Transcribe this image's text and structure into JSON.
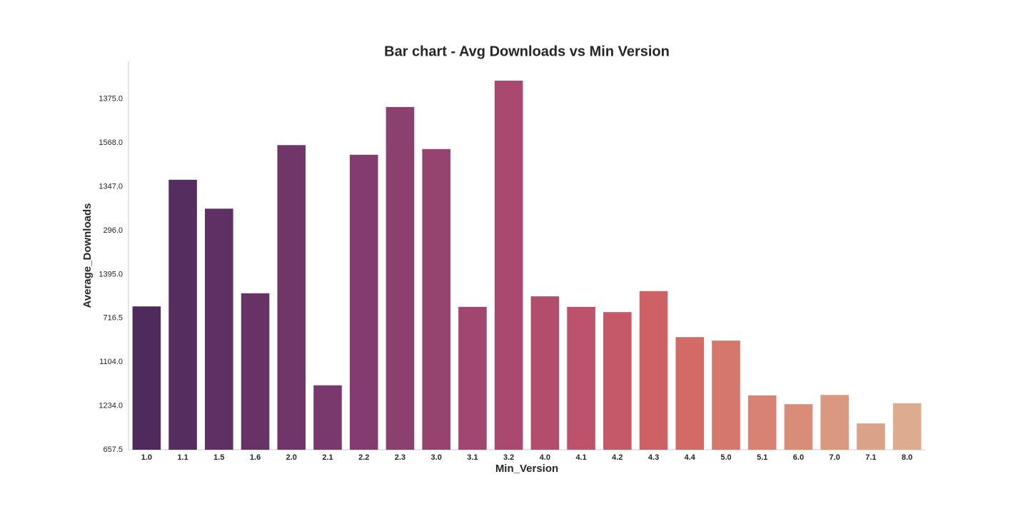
{
  "chart_data": {
    "type": "bar",
    "title": "Bar chart - Avg Downloads vs Min Version",
    "x_label": "Min_Version",
    "y_label": "Average_Downloads",
    "categories": [
      "1.0",
      "1.1",
      "1.5",
      "1.6",
      "2.0",
      "2.1",
      "2.2",
      "2.3",
      "3.0",
      "3.1",
      "3.2",
      "4.0",
      "4.1",
      "4.2",
      "4.3",
      "4.4",
      "5.0",
      "5.1",
      "6.0",
      "7.0",
      "7.1",
      "8.0"
    ],
    "values": [
      3.27,
      6.16,
      5.5,
      3.57,
      6.95,
      1.47,
      6.73,
      7.82,
      6.86,
      3.26,
      8.42,
      3.5,
      3.26,
      3.14,
      3.62,
      2.57,
      2.49,
      1.24,
      1.04,
      1.25,
      0.6,
      1.06
    ],
    "colors": [
      "#4f2a5c",
      "#552d5f",
      "#5e3063",
      "#673367",
      "#70366a",
      "#7a396d",
      "#833c6f",
      "#8c4070",
      "#964370",
      "#a04670",
      "#a9496f",
      "#b34d6d",
      "#bc526b",
      "#c55968",
      "#cd6165",
      "#d26b66",
      "#d5776c",
      "#d78273",
      "#d98d79",
      "#db9880",
      "#dca287",
      "#ddac8e"
    ],
    "ylim": [
      0,
      8.86
    ],
    "yticks": [
      {
        "value": 0,
        "label": "657.5"
      },
      {
        "value": 1,
        "label": "1234.0"
      },
      {
        "value": 2,
        "label": "1104.0"
      },
      {
        "value": 3,
        "label": "716.5"
      },
      {
        "value": 4,
        "label": "1395.0"
      },
      {
        "value": 5,
        "label": "296.0"
      },
      {
        "value": 6,
        "label": "1347.0"
      },
      {
        "value": 7,
        "label": "1568.0"
      },
      {
        "value": 8,
        "label": "1375.0"
      }
    ],
    "grid": false
  }
}
